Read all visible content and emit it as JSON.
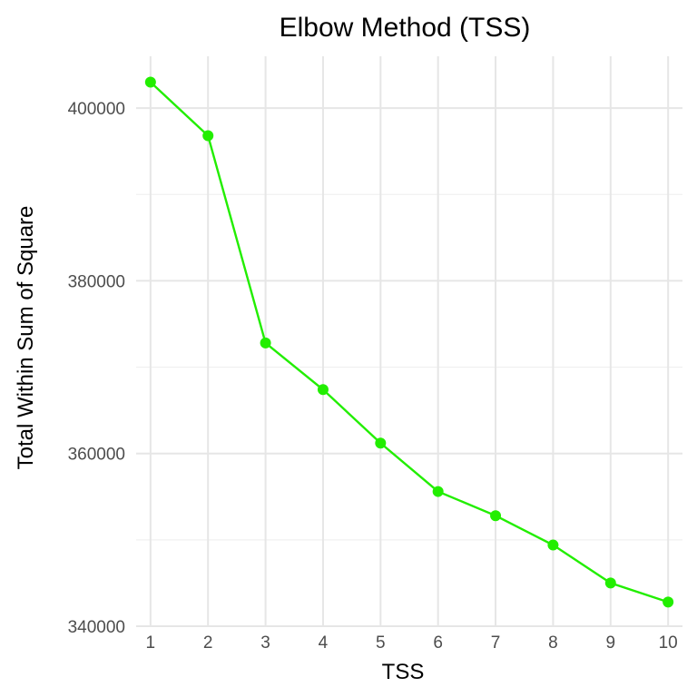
{
  "chart_data": {
    "type": "line",
    "title": "Elbow Method (TSS)",
    "xlabel": "TSS",
    "ylabel": "Total Within Sum of Square",
    "x": [
      1,
      2,
      3,
      4,
      5,
      6,
      7,
      8,
      9,
      10
    ],
    "x_ticks": [
      "1",
      "2",
      "3",
      "4",
      "5",
      "6",
      "7",
      "8",
      "9",
      "10"
    ],
    "series": [
      {
        "values": [
          403000,
          396800,
          372800,
          367400,
          361200,
          355600,
          352800,
          349400,
          345000,
          342800
        ]
      }
    ],
    "y_ticks": [
      340000,
      360000,
      380000,
      400000
    ],
    "y_tick_labels": [
      "340000",
      "360000",
      "380000",
      "400000"
    ],
    "ylim": [
      340000,
      406000
    ],
    "xlim": [
      0.75,
      10.25
    ],
    "grid": true,
    "line_color": "#22ee00"
  }
}
